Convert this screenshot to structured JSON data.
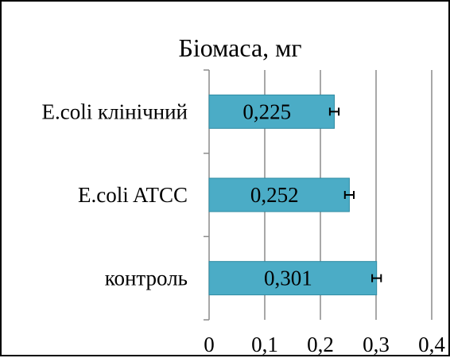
{
  "chart_data": {
    "type": "bar",
    "orientation": "horizontal",
    "title": "Біомаса,  мг",
    "categories": [
      "E.coli клінічний",
      "E.coli ATCC",
      "контроль"
    ],
    "values": [
      0.225,
      0.252,
      0.301
    ],
    "data_labels": [
      "0,225",
      "0,252",
      "0,301"
    ],
    "error": [
      0.008,
      0.008,
      0.008
    ],
    "xlim": [
      0,
      0.4
    ],
    "x_ticks": [
      0,
      0.1,
      0.2,
      0.3,
      0.4
    ],
    "x_tick_labels": [
      "0",
      "0,1",
      "0,2",
      "0,3",
      "0,4"
    ],
    "grid": "vertical",
    "legend": "none",
    "colors": {
      "bar_fill": "#4BACC6",
      "bar_stroke": "#2E8BA3",
      "grid": "#8C8C8C",
      "axis": "#8C8C8C",
      "error_bar": "#000000"
    }
  }
}
